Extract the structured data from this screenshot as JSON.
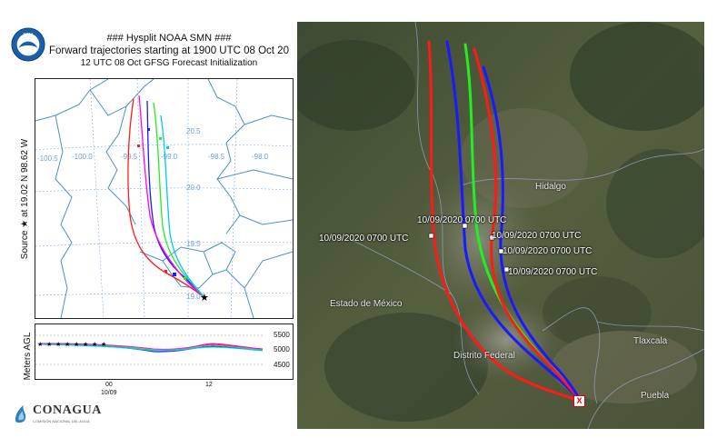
{
  "header": {
    "line1": "### Hysplit NOAA  SMN ###",
    "line2": "Forward trajectories starting at 1900 UTC 08 Oct 20",
    "line3": "12 UTC 08 Oct    GFSG  Forecast Initialization"
  },
  "plot": {
    "side_label": "Source ★ at   19.02 N   98.62 W",
    "lon_ticks": [
      "-100.5",
      "-100.0",
      "-99.5",
      "-99.0",
      "-98.5",
      "-98.0"
    ],
    "lat_ticks": [
      "20.5",
      "20.0",
      "19.5",
      "19.0"
    ]
  },
  "height_plot": {
    "ylabel": "Meters AGL",
    "source_height": "5216",
    "y_ticks": [
      "5500",
      "5000",
      "4500"
    ],
    "x_ticks": [
      "00",
      "12"
    ],
    "date": "10/09"
  },
  "footer": {
    "logo_name": "CONAGUA",
    "logo_sub": "COMISIÓN NACIONAL DEL AGUA"
  },
  "map": {
    "endpoint_labels": [
      "10/09/2020 0700 UTC",
      "10/09/2020 0700 UTC",
      "10/09/2020 0700 UTC",
      "10/09/2020 0700 UTC",
      "10/09/2020 0700 UTC"
    ],
    "places": [
      "Hidalgo",
      "Estado de México",
      "Distrito Federal",
      "Tlaxcala",
      "Puebla"
    ],
    "source_marker": "X"
  },
  "colors": {
    "red": "#ff1a1a",
    "blue": "#1a1aff",
    "green": "#22ee22",
    "magenta": "#ff00ff",
    "cyan": "#00c8ff",
    "grid": "#6aa0d8",
    "border": "#4a8fd0"
  },
  "icons": [
    "noaa-logo",
    "conagua-logo",
    "source-star-icon"
  ]
}
